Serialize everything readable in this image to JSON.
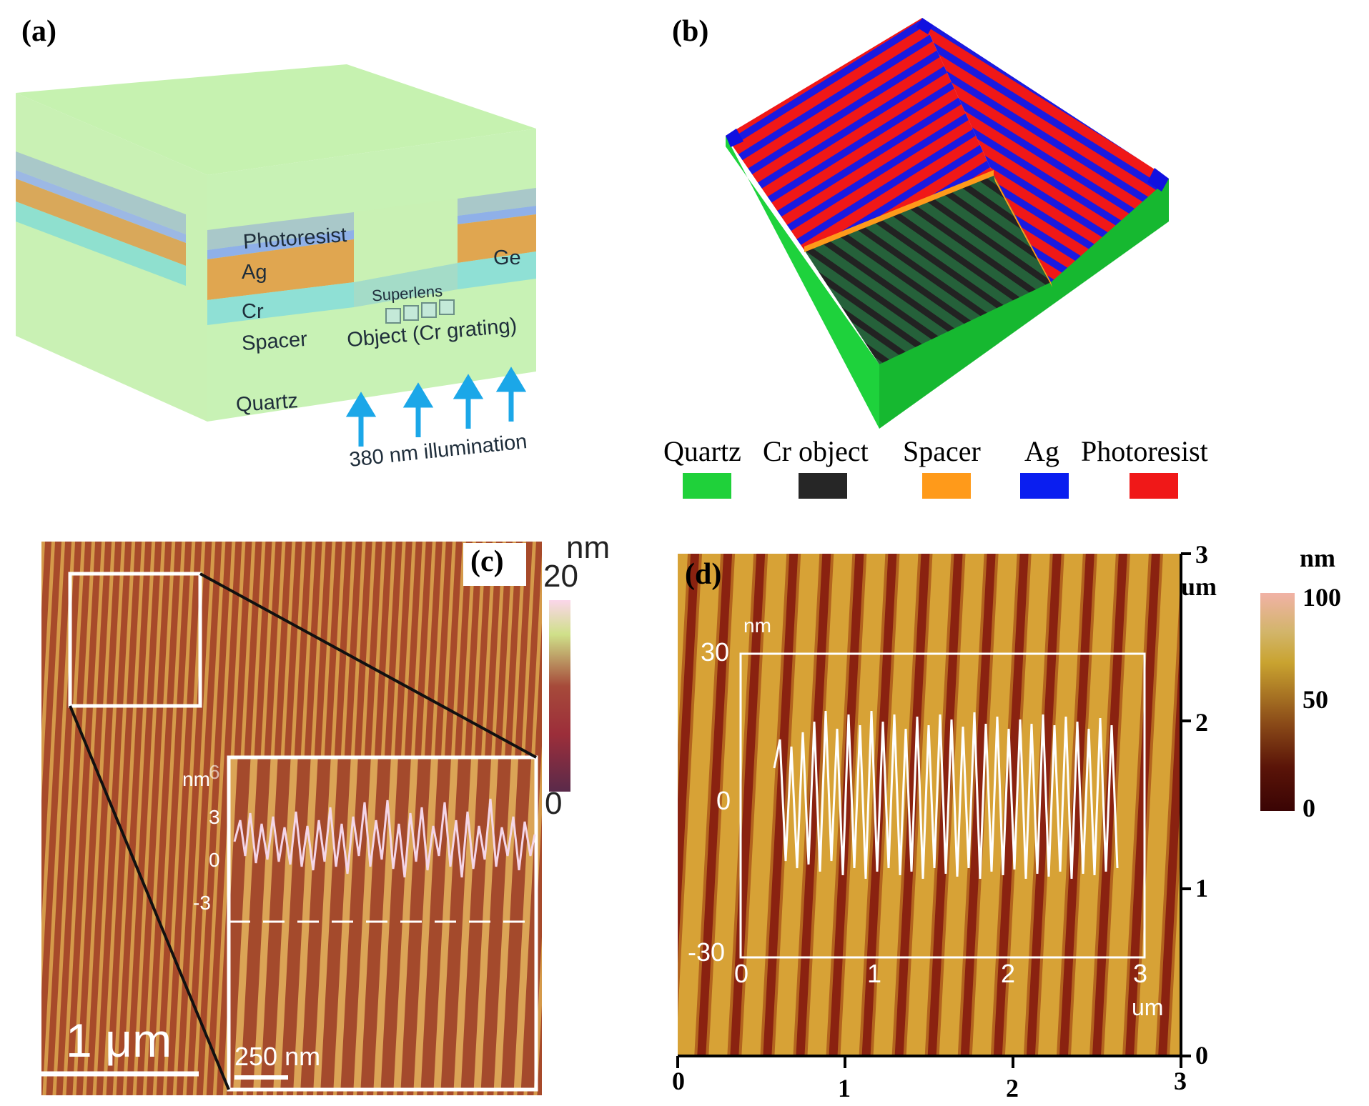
{
  "panel_a": {
    "label": "(a)",
    "layers": {
      "photoresist": "Photoresist",
      "ag": "Ag",
      "cr": "Cr",
      "spacer": "Spacer",
      "quartz": "Quartz",
      "ge": "Ge",
      "superlens": "Superlens",
      "object": "Object (Cr grating)"
    },
    "illumination": "380 nm illumination"
  },
  "panel_b": {
    "label": "(b)",
    "legend": [
      {
        "label": "Quartz",
        "color": "#1fd13a"
      },
      {
        "label": "Cr object",
        "color": "#262626"
      },
      {
        "label": "Spacer",
        "color": "#ff9a1a"
      },
      {
        "label": "Ag",
        "color": "#0a1ef0"
      },
      {
        "label": "Photoresist",
        "color": "#f01818"
      }
    ]
  },
  "panel_c": {
    "label": "(c)",
    "colorbar": {
      "unit": "nm",
      "max": "20",
      "min": "0"
    },
    "profile_axis": {
      "unit": "nm",
      "ticks": [
        "6",
        "3",
        "0",
        "-3"
      ]
    },
    "scalebar_main": "1 μm",
    "scalebar_inset": "250 nm"
  },
  "panel_d": {
    "label": "(d)",
    "colorbar": {
      "unit": "nm",
      "ticks": [
        "100",
        "50",
        "0"
      ]
    },
    "right_axis": {
      "unit": "um",
      "ticks": [
        "3",
        "2",
        "1",
        "0"
      ]
    },
    "bottom_axis": {
      "ticks": [
        "0",
        "1",
        "2",
        "3"
      ]
    },
    "profile": {
      "y_unit": "nm",
      "y_ticks": [
        "30",
        "0",
        "-30"
      ],
      "x_unit": "um",
      "x_ticks": [
        "0",
        "1",
        "2",
        "3"
      ]
    }
  }
}
